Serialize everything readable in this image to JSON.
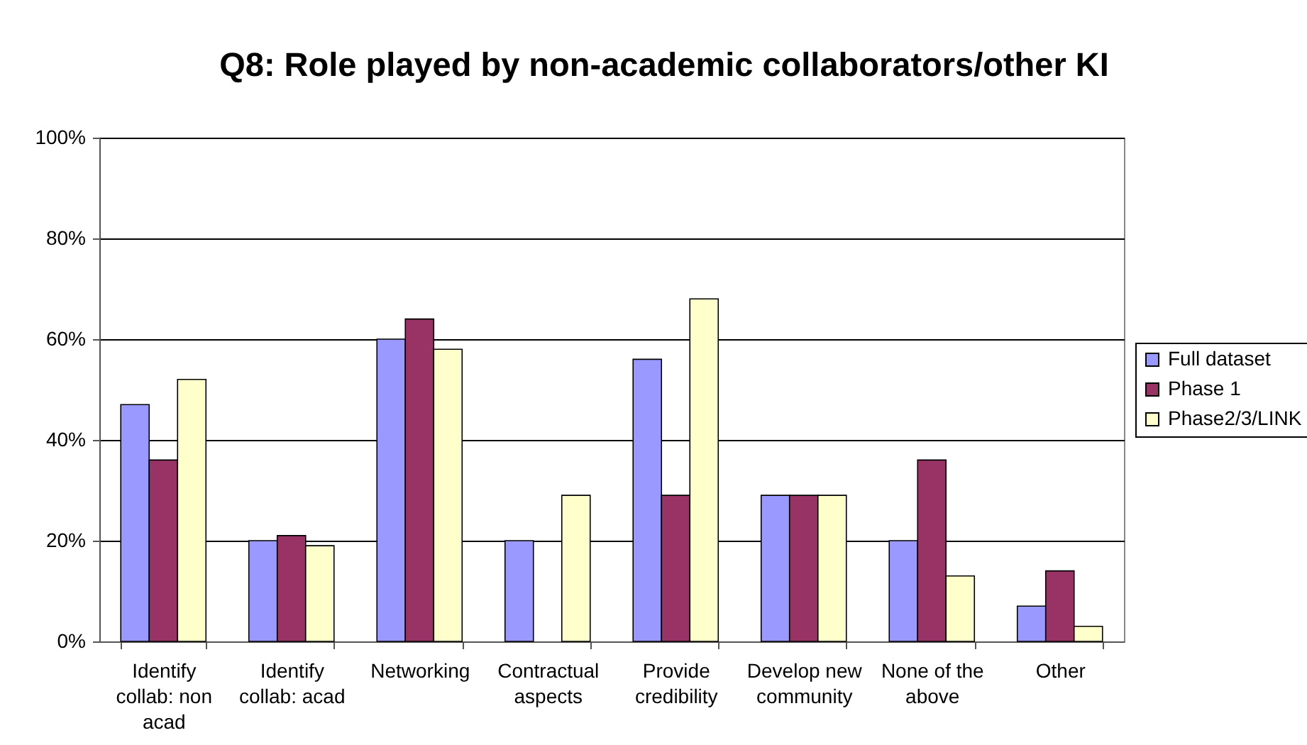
{
  "chart_data": {
    "type": "bar",
    "title": "Q8: Role played by non-academic collaborators/other KI",
    "categories": [
      "Identify collab: non acad",
      "Identify collab: acad",
      "Networking",
      "Contractual aspects",
      "Provide credibility",
      "Develop new community",
      "None of the above",
      "Other"
    ],
    "series": [
      {
        "name": "Full dataset",
        "color": "#9999ff",
        "values": [
          47,
          20,
          60,
          20,
          56,
          29,
          20,
          7
        ]
      },
      {
        "name": "Phase 1",
        "color": "#993366",
        "values": [
          36,
          21,
          64,
          null,
          29,
          29,
          36,
          14
        ]
      },
      {
        "name": "Phase2/3/LINK",
        "color": "#ffffcc",
        "values": [
          52,
          19,
          58,
          29,
          68,
          29,
          13,
          3
        ]
      }
    ],
    "ylim": [
      0,
      100
    ],
    "yticks": [
      {
        "value": 0,
        "label": "0%"
      },
      {
        "value": 20,
        "label": "20%"
      },
      {
        "value": 40,
        "label": "40%"
      },
      {
        "value": 60,
        "label": "60%"
      },
      {
        "value": 80,
        "label": "80%"
      },
      {
        "value": 100,
        "label": "100%"
      }
    ],
    "grid": "y",
    "legend": "right"
  }
}
